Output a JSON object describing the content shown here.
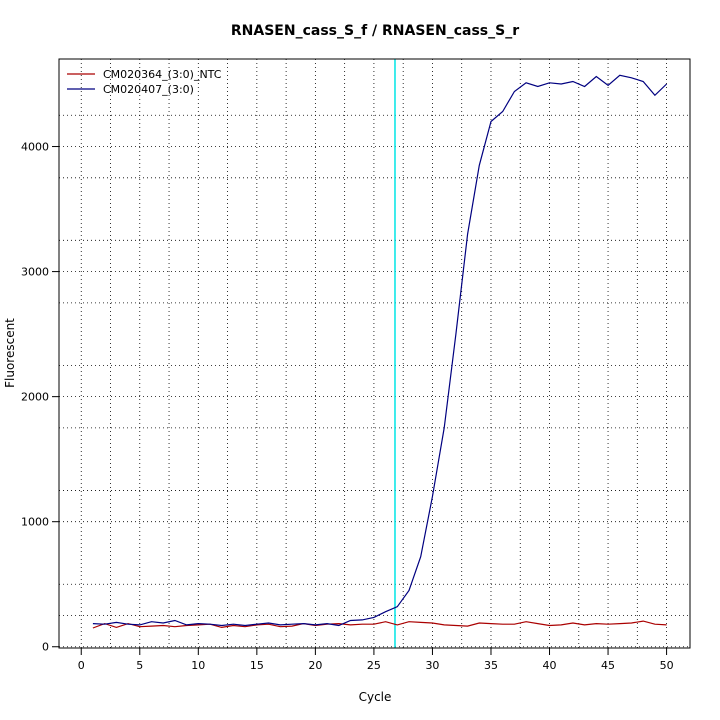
{
  "chart_data": {
    "type": "line",
    "title": "RNASEN_cass_S_f / RNASEN_cass_S_r",
    "xlabel": "Cycle",
    "ylabel": "Fluorescent",
    "xlim": [
      -1.9,
      52
    ],
    "ylim": [
      -10,
      4700
    ],
    "x_ticks": [
      0,
      5,
      10,
      15,
      20,
      25,
      30,
      35,
      40,
      45,
      50
    ],
    "y_ticks": [
      0,
      1000,
      2000,
      3000,
      4000
    ],
    "x_grid": [
      2.5,
      7.5,
      12.5,
      17.5,
      22.5,
      27.5,
      32.5,
      37.5,
      42.5,
      47.5
    ],
    "y_grid": [
      250,
      500,
      1250,
      1750,
      2250,
      2750,
      3250,
      3750,
      4250
    ],
    "grid": true,
    "threshold_line": {
      "x": 26.8,
      "color": "#00e5e5"
    },
    "legend_position": "top-left",
    "x": [
      1,
      2,
      3,
      4,
      5,
      6,
      7,
      8,
      9,
      10,
      11,
      12,
      13,
      14,
      15,
      16,
      17,
      18,
      19,
      20,
      21,
      22,
      23,
      24,
      25,
      26,
      27,
      28,
      29,
      30,
      31,
      32,
      33,
      34,
      35,
      36,
      37,
      38,
      39,
      40,
      41,
      42,
      43,
      44,
      45,
      46,
      47,
      48,
      49,
      50
    ],
    "series": [
      {
        "name": "CM020364_(3:0)_NTC",
        "color": "#aa0000",
        "values": [
          150,
          185,
          155,
          185,
          160,
          165,
          170,
          160,
          170,
          175,
          180,
          155,
          170,
          160,
          175,
          180,
          160,
          165,
          185,
          170,
          180,
          185,
          175,
          180,
          180,
          200,
          175,
          200,
          195,
          190,
          175,
          170,
          165,
          190,
          185,
          180,
          180,
          200,
          185,
          170,
          175,
          190,
          175,
          185,
          180,
          185,
          190,
          205,
          180,
          175
        ]
      },
      {
        "name": "CM020407_(3:0)",
        "color": "#000080",
        "values": [
          185,
          180,
          195,
          180,
          175,
          200,
          190,
          210,
          175,
          185,
          180,
          170,
          180,
          170,
          180,
          190,
          175,
          180,
          185,
          175,
          185,
          170,
          210,
          215,
          235,
          280,
          320,
          450,
          720,
          1200,
          1750,
          2500,
          3300,
          3850,
          4200,
          4280,
          4440,
          4510,
          4480,
          4510,
          4500,
          4520,
          4480,
          4560,
          4490,
          4570,
          4550,
          4520,
          4410,
          4500
        ]
      }
    ]
  }
}
